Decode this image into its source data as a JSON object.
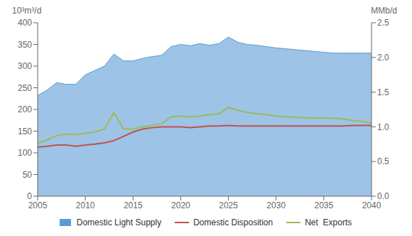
{
  "chart_data": {
    "type": "line",
    "ylabel": "10³m³/d",
    "y2label": "MMb/d",
    "x": [
      2005,
      2006,
      2007,
      2008,
      2009,
      2010,
      2011,
      2012,
      2013,
      2014,
      2015,
      2016,
      2017,
      2018,
      2019,
      2020,
      2021,
      2022,
      2023,
      2024,
      2025,
      2026,
      2027,
      2028,
      2029,
      2030,
      2031,
      2032,
      2033,
      2034,
      2035,
      2036,
      2037,
      2038,
      2039,
      2040
    ],
    "series": [
      {
        "name": "Domestic Light Supply",
        "type": "area",
        "color": "#5B9BD5",
        "values": [
          232,
          245,
          262,
          258,
          258,
          280,
          290,
          300,
          328,
          312,
          312,
          318,
          322,
          325,
          345,
          350,
          347,
          352,
          348,
          352,
          367,
          355,
          350,
          348,
          345,
          342,
          340,
          338,
          336,
          334,
          332,
          330,
          330,
          330,
          330,
          330
        ]
      },
      {
        "name": "Domestic Disposition",
        "type": "line",
        "color": "#C0504D",
        "values": [
          113,
          115,
          118,
          118,
          115,
          118,
          120,
          123,
          128,
          138,
          148,
          155,
          158,
          160,
          160,
          160,
          158,
          160,
          162,
          162,
          163,
          162,
          162,
          162,
          162,
          162,
          162,
          162,
          162,
          162,
          162,
          162,
          162,
          163,
          163,
          163
        ]
      },
      {
        "name": "Net  Exports",
        "type": "line",
        "color": "#9BBB59",
        "values": [
          122,
          130,
          140,
          143,
          142,
          145,
          148,
          155,
          193,
          155,
          155,
          160,
          163,
          167,
          183,
          185,
          183,
          185,
          188,
          190,
          205,
          198,
          193,
          190,
          188,
          185,
          183,
          182,
          181,
          180,
          180,
          180,
          178,
          175,
          172,
          168
        ]
      }
    ],
    "xlim": [
      2005,
      2040
    ],
    "xticks": [
      2005,
      2010,
      2015,
      2020,
      2025,
      2030,
      2035,
      2040
    ],
    "ylim": [
      0,
      400
    ],
    "yticks": [
      0,
      50,
      100,
      150,
      200,
      250,
      300,
      350,
      400
    ],
    "y2lim": [
      0,
      2.5
    ],
    "y2ticks": [
      {
        "value": 0,
        "label": "0.0"
      },
      0.5,
      {
        "value": 1,
        "label": "1.0"
      },
      1.5,
      {
        "value": 2,
        "label": "2.0"
      },
      2.5
    ],
    "grid": false,
    "legend": "bottom"
  }
}
